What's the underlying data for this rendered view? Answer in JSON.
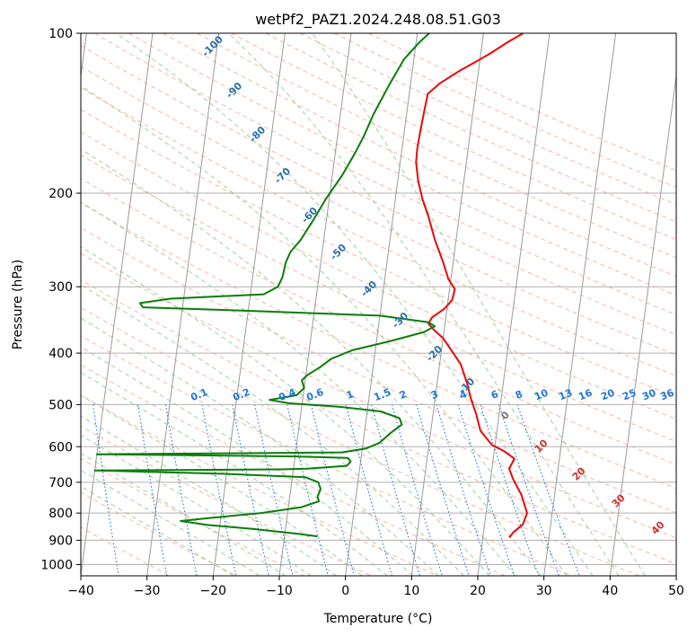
{
  "chart_data": {
    "type": "line",
    "title": "wetPf2_PAZ1.2024.248.08.51.G03",
    "xlabel": "Temperature (°C)",
    "ylabel": "Pressure (hPa)",
    "xlim": [
      -40,
      50
    ],
    "ylim": [
      1050,
      100
    ],
    "y_scale": "log",
    "x_ticks": [
      -40,
      -30,
      -20,
      -10,
      0,
      10,
      20,
      30,
      40,
      50
    ],
    "x_tick_labels": [
      "−40",
      "−30",
      "−20",
      "−10",
      "0",
      "10",
      "20",
      "30",
      "40",
      "50"
    ],
    "y_ticks": [
      1000,
      900,
      800,
      700,
      600,
      500,
      400,
      300,
      200,
      100
    ],
    "y_tick_labels": [
      "1000",
      "900",
      "800",
      "700",
      "600",
      "500",
      "400",
      "300",
      "200",
      "100"
    ],
    "grid": true,
    "colors": {
      "temperature": "#e8080a",
      "dewpoint": "#0a7d0a",
      "isotherm": "#9a9a9a",
      "dry_adiabat": "#f4a58c",
      "moist_adiabat": "#8ec98e",
      "mixing_ratio": "#1f77d4",
      "theta_label": "#2a6fa8",
      "thetae_label": "#d32f2f",
      "zero_label": "#777777"
    },
    "series": [
      {
        "key": "temperature",
        "points": [
          [
            24.0,
            890
          ],
          [
            24.5,
            870
          ],
          [
            25.8,
            840
          ],
          [
            26.2,
            800
          ],
          [
            25.0,
            740
          ],
          [
            23.4,
            690
          ],
          [
            22.6,
            660
          ],
          [
            23.2,
            632
          ],
          [
            21.5,
            612
          ],
          [
            19.5,
            595
          ],
          [
            17.5,
            560
          ],
          [
            16.5,
            520
          ],
          [
            15.5,
            490
          ],
          [
            14.5,
            455
          ],
          [
            13.2,
            420
          ],
          [
            11.5,
            395
          ],
          [
            10.0,
            375
          ],
          [
            8.5,
            362
          ],
          [
            7.5,
            352
          ],
          [
            7.9,
            343
          ],
          [
            9.6,
            330
          ],
          [
            10.6,
            318
          ],
          [
            10.8,
            303
          ],
          [
            9.6,
            290
          ],
          [
            8.5,
            270
          ],
          [
            6.8,
            245
          ],
          [
            5.4,
            222
          ],
          [
            4.1,
            205
          ],
          [
            3.1,
            190
          ],
          [
            2.4,
            175
          ],
          [
            2.3,
            165
          ],
          [
            2.4,
            155
          ],
          [
            2.6,
            140
          ],
          [
            2.8,
            130
          ],
          [
            4.5,
            124
          ],
          [
            7.0,
            118
          ],
          [
            9.5,
            113
          ],
          [
            11.5,
            109
          ],
          [
            13.8,
            104
          ],
          [
            16.0,
            100
          ]
        ]
      },
      {
        "key": "dewpoint",
        "points": [
          [
            -5.0,
            885
          ],
          [
            -8.0,
            875
          ],
          [
            -15.0,
            857
          ],
          [
            -22.0,
            842
          ],
          [
            -26.0,
            828
          ],
          [
            -22.0,
            818
          ],
          [
            -14.0,
            800
          ],
          [
            -8.0,
            780
          ],
          [
            -5.5,
            760
          ],
          [
            -5.8,
            745
          ],
          [
            -5.5,
            720
          ],
          [
            -6.0,
            700
          ],
          [
            -8.0,
            685
          ],
          [
            -20.0,
            675
          ],
          [
            -40.0,
            665
          ],
          [
            -12.0,
            662
          ],
          [
            -8.0,
            660
          ],
          [
            -2.0,
            652
          ],
          [
            -1.5,
            640
          ],
          [
            -2.0,
            630
          ],
          [
            -10.0,
            626
          ],
          [
            -40.0,
            620
          ],
          [
            -3.0,
            615
          ],
          [
            0.5,
            605
          ],
          [
            2.5,
            590
          ],
          [
            4.0,
            565
          ],
          [
            5.5,
            545
          ],
          [
            5.0,
            530
          ],
          [
            2.0,
            515
          ],
          [
            -4.0,
            505
          ],
          [
            -12.0,
            497
          ],
          [
            -15.0,
            490
          ],
          [
            -11.0,
            480
          ],
          [
            -10.0,
            465
          ],
          [
            -10.5,
            450
          ],
          [
            -9.8,
            440
          ],
          [
            -8.0,
            425
          ],
          [
            -6.5,
            410
          ],
          [
            -3.5,
            395
          ],
          [
            2.0,
            380
          ],
          [
            7.0,
            365
          ],
          [
            8.5,
            356
          ],
          [
            7.5,
            350
          ],
          [
            0.0,
            340
          ],
          [
            -20.0,
            333
          ],
          [
            -36.0,
            328
          ],
          [
            -36.5,
            322
          ],
          [
            -32.0,
            316
          ],
          [
            -18.0,
            310
          ],
          [
            -16.0,
            300
          ],
          [
            -15.5,
            288
          ],
          [
            -15.3,
            270
          ],
          [
            -14.8,
            258
          ],
          [
            -13.5,
            245
          ],
          [
            -12.0,
            225
          ],
          [
            -10.5,
            205
          ],
          [
            -8.5,
            185
          ],
          [
            -7.0,
            168
          ],
          [
            -6.0,
            156
          ],
          [
            -5.0,
            142
          ],
          [
            -3.2,
            125
          ],
          [
            -1.5,
            112
          ],
          [
            0.5,
            104
          ],
          [
            1.8,
            100
          ]
        ]
      }
    ],
    "theta_labels": [
      "-100",
      "-90",
      "-80",
      "-70",
      "-60",
      "-50",
      "-40",
      "-30",
      "-20",
      "-10",
      "0"
    ],
    "mixing_ratio_labels": [
      "0.1",
      "0.2",
      "0.4",
      "0.6",
      "1",
      "1.5",
      "2",
      "3",
      "4",
      "6",
      "8",
      "10",
      "13",
      "16",
      "20",
      "25",
      "30",
      "36"
    ],
    "thetae_labels": [
      "10",
      "20",
      "30",
      "40"
    ]
  }
}
